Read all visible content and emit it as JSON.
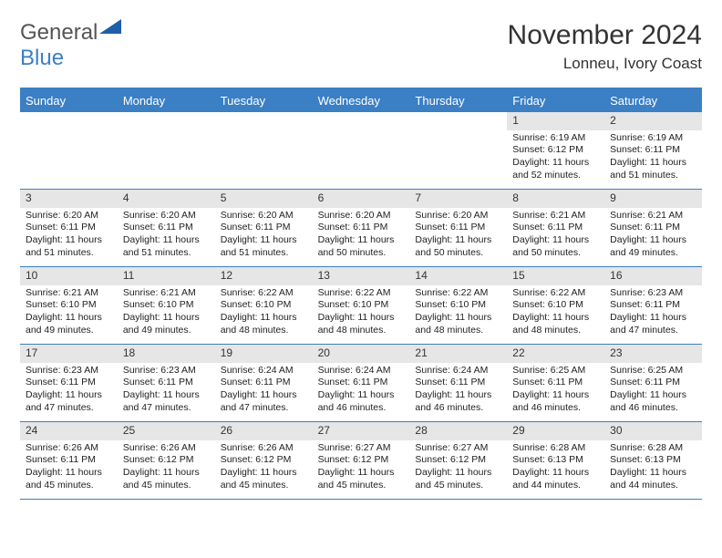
{
  "logo": {
    "word1": "General",
    "word2": "Blue"
  },
  "header": {
    "month_title": "November 2024",
    "location": "Lonneu, Ivory Coast"
  },
  "colors": {
    "brand_blue": "#3b7fc4",
    "gray_bar": "#e6e6e6",
    "text": "#222222",
    "bg": "#ffffff"
  },
  "dow": [
    "Sunday",
    "Monday",
    "Tuesday",
    "Wednesday",
    "Thursday",
    "Friday",
    "Saturday"
  ],
  "weeks": [
    [
      {
        "empty": true
      },
      {
        "empty": true
      },
      {
        "empty": true
      },
      {
        "empty": true
      },
      {
        "empty": true
      },
      {
        "n": "1",
        "sunrise": "Sunrise: 6:19 AM",
        "sunset": "Sunset: 6:12 PM",
        "daylight": "Daylight: 11 hours and 52 minutes."
      },
      {
        "n": "2",
        "sunrise": "Sunrise: 6:19 AM",
        "sunset": "Sunset: 6:11 PM",
        "daylight": "Daylight: 11 hours and 51 minutes."
      }
    ],
    [
      {
        "n": "3",
        "sunrise": "Sunrise: 6:20 AM",
        "sunset": "Sunset: 6:11 PM",
        "daylight": "Daylight: 11 hours and 51 minutes."
      },
      {
        "n": "4",
        "sunrise": "Sunrise: 6:20 AM",
        "sunset": "Sunset: 6:11 PM",
        "daylight": "Daylight: 11 hours and 51 minutes."
      },
      {
        "n": "5",
        "sunrise": "Sunrise: 6:20 AM",
        "sunset": "Sunset: 6:11 PM",
        "daylight": "Daylight: 11 hours and 51 minutes."
      },
      {
        "n": "6",
        "sunrise": "Sunrise: 6:20 AM",
        "sunset": "Sunset: 6:11 PM",
        "daylight": "Daylight: 11 hours and 50 minutes."
      },
      {
        "n": "7",
        "sunrise": "Sunrise: 6:20 AM",
        "sunset": "Sunset: 6:11 PM",
        "daylight": "Daylight: 11 hours and 50 minutes."
      },
      {
        "n": "8",
        "sunrise": "Sunrise: 6:21 AM",
        "sunset": "Sunset: 6:11 PM",
        "daylight": "Daylight: 11 hours and 50 minutes."
      },
      {
        "n": "9",
        "sunrise": "Sunrise: 6:21 AM",
        "sunset": "Sunset: 6:11 PM",
        "daylight": "Daylight: 11 hours and 49 minutes."
      }
    ],
    [
      {
        "n": "10",
        "sunrise": "Sunrise: 6:21 AM",
        "sunset": "Sunset: 6:10 PM",
        "daylight": "Daylight: 11 hours and 49 minutes."
      },
      {
        "n": "11",
        "sunrise": "Sunrise: 6:21 AM",
        "sunset": "Sunset: 6:10 PM",
        "daylight": "Daylight: 11 hours and 49 minutes."
      },
      {
        "n": "12",
        "sunrise": "Sunrise: 6:22 AM",
        "sunset": "Sunset: 6:10 PM",
        "daylight": "Daylight: 11 hours and 48 minutes."
      },
      {
        "n": "13",
        "sunrise": "Sunrise: 6:22 AM",
        "sunset": "Sunset: 6:10 PM",
        "daylight": "Daylight: 11 hours and 48 minutes."
      },
      {
        "n": "14",
        "sunrise": "Sunrise: 6:22 AM",
        "sunset": "Sunset: 6:10 PM",
        "daylight": "Daylight: 11 hours and 48 minutes."
      },
      {
        "n": "15",
        "sunrise": "Sunrise: 6:22 AM",
        "sunset": "Sunset: 6:10 PM",
        "daylight": "Daylight: 11 hours and 48 minutes."
      },
      {
        "n": "16",
        "sunrise": "Sunrise: 6:23 AM",
        "sunset": "Sunset: 6:11 PM",
        "daylight": "Daylight: 11 hours and 47 minutes."
      }
    ],
    [
      {
        "n": "17",
        "sunrise": "Sunrise: 6:23 AM",
        "sunset": "Sunset: 6:11 PM",
        "daylight": "Daylight: 11 hours and 47 minutes."
      },
      {
        "n": "18",
        "sunrise": "Sunrise: 6:23 AM",
        "sunset": "Sunset: 6:11 PM",
        "daylight": "Daylight: 11 hours and 47 minutes."
      },
      {
        "n": "19",
        "sunrise": "Sunrise: 6:24 AM",
        "sunset": "Sunset: 6:11 PM",
        "daylight": "Daylight: 11 hours and 47 minutes."
      },
      {
        "n": "20",
        "sunrise": "Sunrise: 6:24 AM",
        "sunset": "Sunset: 6:11 PM",
        "daylight": "Daylight: 11 hours and 46 minutes."
      },
      {
        "n": "21",
        "sunrise": "Sunrise: 6:24 AM",
        "sunset": "Sunset: 6:11 PM",
        "daylight": "Daylight: 11 hours and 46 minutes."
      },
      {
        "n": "22",
        "sunrise": "Sunrise: 6:25 AM",
        "sunset": "Sunset: 6:11 PM",
        "daylight": "Daylight: 11 hours and 46 minutes."
      },
      {
        "n": "23",
        "sunrise": "Sunrise: 6:25 AM",
        "sunset": "Sunset: 6:11 PM",
        "daylight": "Daylight: 11 hours and 46 minutes."
      }
    ],
    [
      {
        "n": "24",
        "sunrise": "Sunrise: 6:26 AM",
        "sunset": "Sunset: 6:11 PM",
        "daylight": "Daylight: 11 hours and 45 minutes."
      },
      {
        "n": "25",
        "sunrise": "Sunrise: 6:26 AM",
        "sunset": "Sunset: 6:12 PM",
        "daylight": "Daylight: 11 hours and 45 minutes."
      },
      {
        "n": "26",
        "sunrise": "Sunrise: 6:26 AM",
        "sunset": "Sunset: 6:12 PM",
        "daylight": "Daylight: 11 hours and 45 minutes."
      },
      {
        "n": "27",
        "sunrise": "Sunrise: 6:27 AM",
        "sunset": "Sunset: 6:12 PM",
        "daylight": "Daylight: 11 hours and 45 minutes."
      },
      {
        "n": "28",
        "sunrise": "Sunrise: 6:27 AM",
        "sunset": "Sunset: 6:12 PM",
        "daylight": "Daylight: 11 hours and 45 minutes."
      },
      {
        "n": "29",
        "sunrise": "Sunrise: 6:28 AM",
        "sunset": "Sunset: 6:13 PM",
        "daylight": "Daylight: 11 hours and 44 minutes."
      },
      {
        "n": "30",
        "sunrise": "Sunrise: 6:28 AM",
        "sunset": "Sunset: 6:13 PM",
        "daylight": "Daylight: 11 hours and 44 minutes."
      }
    ]
  ]
}
